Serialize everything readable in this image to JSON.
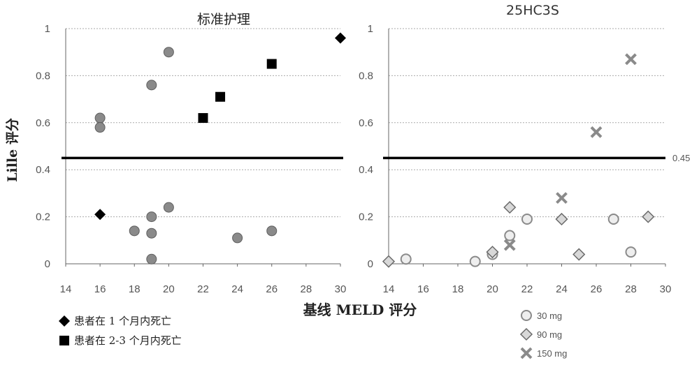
{
  "chart_data": [
    {
      "type": "scatter",
      "title": "标准护理",
      "xlabel": "基线 MELD 评分",
      "ylabel": "Lille 评分",
      "xlim": [
        14,
        30
      ],
      "ylim": [
        0,
        1
      ],
      "xticks": [
        "14",
        "16",
        "18",
        "20",
        "22",
        "24",
        "26",
        "28",
        "30"
      ],
      "yticks": [
        "0",
        "0.2",
        "0.4",
        "0.6",
        "0.8",
        "1"
      ],
      "threshold": 0.45,
      "grid": true,
      "series": [
        {
          "name": "",
          "marker": "circle",
          "color": "#8a8a8a",
          "points": [
            [
              16,
              0.62
            ],
            [
              16,
              0.58
            ],
            [
              19,
              0.76
            ],
            [
              20,
              0.9
            ],
            [
              18,
              0.14
            ],
            [
              19,
              0.2
            ],
            [
              19,
              0.13
            ],
            [
              19,
              0.02
            ],
            [
              20,
              0.24
            ],
            [
              24,
              0.11
            ],
            [
              26,
              0.14
            ]
          ]
        },
        {
          "name": "患者在 1 个月内死亡",
          "marker": "diamond",
          "color": "#000000",
          "points": [
            [
              16,
              0.21
            ],
            [
              30,
              0.96
            ]
          ]
        },
        {
          "name": "患者在 2-3 个月内死亡",
          "marker": "square",
          "color": "#000000",
          "points": [
            [
              22,
              0.62
            ],
            [
              23,
              0.71
            ],
            [
              26,
              0.85
            ]
          ]
        }
      ]
    },
    {
      "type": "scatter",
      "title": "25HC3S",
      "xlabel": "基线 MELD 评分",
      "ylabel": "",
      "xlim": [
        14,
        30
      ],
      "ylim": [
        0,
        1
      ],
      "xticks": [
        "14",
        "16",
        "18",
        "20",
        "22",
        "24",
        "26",
        "28",
        "30"
      ],
      "yticks": [
        "0",
        "0.2",
        "0.4",
        "0.6",
        "0.8",
        "1"
      ],
      "threshold": 0.45,
      "threshold_label": "0.45",
      "grid": true,
      "series": [
        {
          "name": "30 mg",
          "marker": "circle-open",
          "color": "#8a8a8a",
          "points": [
            [
              15,
              0.02
            ],
            [
              19,
              0.01
            ],
            [
              20,
              0.04
            ],
            [
              21,
              0.12
            ],
            [
              22,
              0.19
            ],
            [
              27,
              0.19
            ],
            [
              28,
              0.05
            ]
          ]
        },
        {
          "name": "90 mg",
          "marker": "diamond-open",
          "color": "#8a8a8a",
          "points": [
            [
              14,
              0.01
            ],
            [
              20,
              0.05
            ],
            [
              21,
              0.24
            ],
            [
              24,
              0.19
            ],
            [
              25,
              0.04
            ],
            [
              29,
              0.2
            ]
          ]
        },
        {
          "name": "150 mg",
          "marker": "cross",
          "color": "#8a8a8a",
          "points": [
            [
              21,
              0.08
            ],
            [
              24,
              0.28
            ],
            [
              26,
              0.56
            ],
            [
              28,
              0.87
            ]
          ]
        }
      ]
    }
  ],
  "legend_left": [
    {
      "label": "患者在 1 个月内死亡",
      "marker": "diamond"
    },
    {
      "label": "患者在 2-3 个月内死亡",
      "marker": "square"
    }
  ],
  "legend_right": [
    {
      "label": "30 mg",
      "marker": "circle-open"
    },
    {
      "label": "90 mg",
      "marker": "diamond-open"
    },
    {
      "label": "150 mg",
      "marker": "cross"
    }
  ],
  "colors": {
    "threshold": "#000000",
    "grid": "#aaaaaa",
    "marker_gray": "#8a8a8a"
  }
}
